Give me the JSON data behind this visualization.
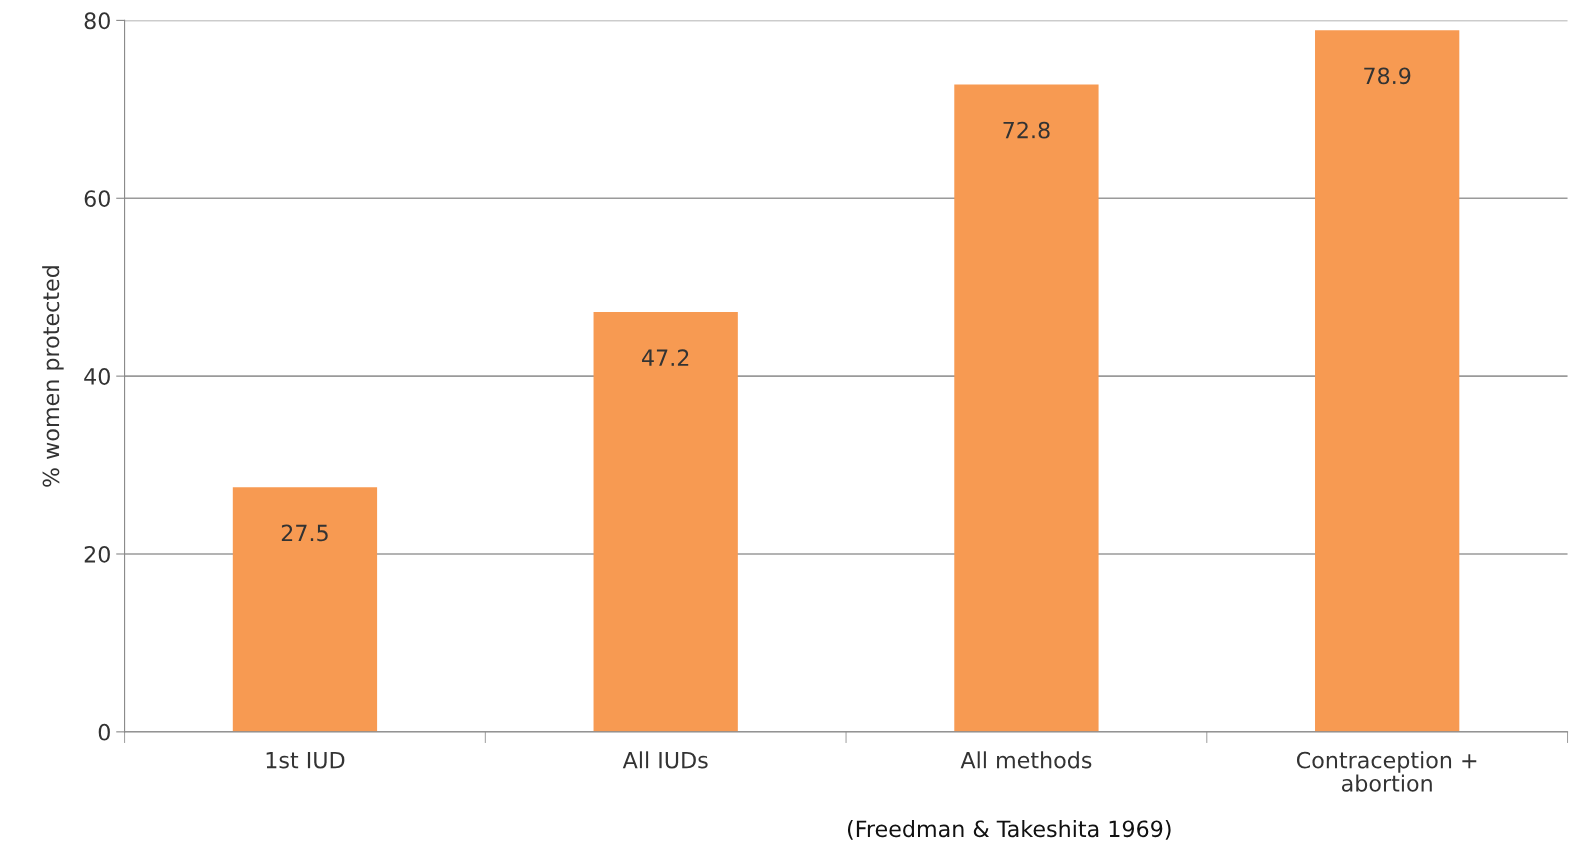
{
  "chart_data": {
    "type": "bar",
    "ylabel": "% women protected",
    "categories": [
      "1st IUD",
      "All IUDs",
      "All methods",
      "Contraception +\nabortion"
    ],
    "values": [
      27.5,
      47.2,
      72.8,
      78.9
    ],
    "color": "#f79a52",
    "ylim": [
      0,
      80
    ],
    "yticks": [
      0,
      20,
      40,
      60,
      80
    ],
    "grid": "y",
    "data_labels": true,
    "legend": false,
    "annotations": [
      "(Freedman & Takeshita 1969)"
    ]
  }
}
